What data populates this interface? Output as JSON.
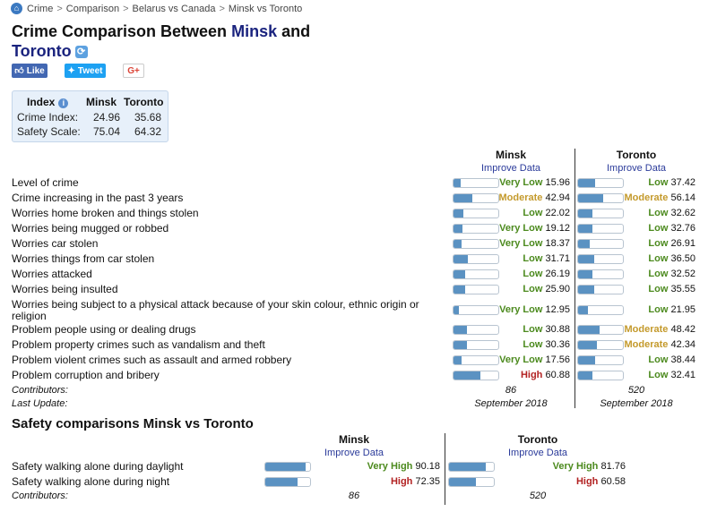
{
  "breadcrumb": {
    "items": [
      "Crime",
      "Comparison",
      "Belarus vs Canada",
      "Minsk vs Toronto"
    ],
    "separator": ">"
  },
  "title": {
    "prefix": "Crime Comparison Between",
    "city1": "Minsk",
    "joiner": "and",
    "city2": "Toronto"
  },
  "share": {
    "like": "Like",
    "tweet": "Tweet",
    "gplus": "G+"
  },
  "index_box": {
    "header": {
      "index": "Index",
      "city1": "Minsk",
      "city2": "Toronto"
    },
    "rows": [
      {
        "label": "Crime Index:",
        "city1": "24.96",
        "city2": "35.68"
      },
      {
        "label": "Safety Scale:",
        "city1": "75.04",
        "city2": "64.32"
      }
    ]
  },
  "crime_table": {
    "city1": "Minsk",
    "city2": "Toronto",
    "improve": "Improve Data",
    "rows": [
      {
        "label": "Level of crime",
        "c1": {
          "rating": "Very Low",
          "value": "15.96"
        },
        "c2": {
          "rating": "Low",
          "value": "37.42"
        }
      },
      {
        "label": "Crime increasing in the past 3 years",
        "c1": {
          "rating": "Moderate",
          "value": "42.94"
        },
        "c2": {
          "rating": "Moderate",
          "value": "56.14"
        }
      },
      {
        "label": "Worries home broken and things stolen",
        "c1": {
          "rating": "Low",
          "value": "22.02"
        },
        "c2": {
          "rating": "Low",
          "value": "32.62"
        }
      },
      {
        "label": "Worries being mugged or robbed",
        "c1": {
          "rating": "Very Low",
          "value": "19.12"
        },
        "c2": {
          "rating": "Low",
          "value": "32.76"
        }
      },
      {
        "label": "Worries car stolen",
        "c1": {
          "rating": "Very Low",
          "value": "18.37"
        },
        "c2": {
          "rating": "Low",
          "value": "26.91"
        }
      },
      {
        "label": "Worries things from car stolen",
        "c1": {
          "rating": "Low",
          "value": "31.71"
        },
        "c2": {
          "rating": "Low",
          "value": "36.50"
        }
      },
      {
        "label": "Worries attacked",
        "c1": {
          "rating": "Low",
          "value": "26.19"
        },
        "c2": {
          "rating": "Low",
          "value": "32.52"
        }
      },
      {
        "label": "Worries being insulted",
        "c1": {
          "rating": "Low",
          "value": "25.90"
        },
        "c2": {
          "rating": "Low",
          "value": "35.55"
        }
      },
      {
        "label": "Worries being subject to a physical attack because of your skin colour, ethnic origin or religion",
        "c1": {
          "rating": "Very Low",
          "value": "12.95"
        },
        "c2": {
          "rating": "Low",
          "value": "21.95"
        }
      },
      {
        "label": "Problem people using or dealing drugs",
        "c1": {
          "rating": "Low",
          "value": "30.88"
        },
        "c2": {
          "rating": "Moderate",
          "value": "48.42"
        }
      },
      {
        "label": "Problem property crimes such as vandalism and theft",
        "c1": {
          "rating": "Low",
          "value": "30.36"
        },
        "c2": {
          "rating": "Moderate",
          "value": "42.34"
        }
      },
      {
        "label": "Problem violent crimes such as assault and armed robbery",
        "c1": {
          "rating": "Very Low",
          "value": "17.56"
        },
        "c2": {
          "rating": "Low",
          "value": "38.44"
        }
      },
      {
        "label": "Problem corruption and bribery",
        "c1": {
          "rating": "High",
          "value": "60.88"
        },
        "c2": {
          "rating": "Low",
          "value": "32.41"
        }
      }
    ],
    "contributors": {
      "label": "Contributors:",
      "c1": "86",
      "c2": "520"
    },
    "last_update": {
      "label": "Last Update:",
      "c1": "September 2018",
      "c2": "September 2018"
    }
  },
  "safety": {
    "title": "Safety comparisons Minsk vs Toronto",
    "city1": "Minsk",
    "city2": "Toronto",
    "improve": "Improve Data",
    "rows": [
      {
        "label": "Safety walking alone during daylight",
        "c1": {
          "rating": "Very High",
          "value": "90.18"
        },
        "c2": {
          "rating": "Very High",
          "value": "81.76"
        }
      },
      {
        "label": "Safety walking alone during night",
        "c1": {
          "rating": "High",
          "value": "72.35"
        },
        "c2": {
          "rating": "High",
          "value": "60.58"
        }
      }
    ],
    "contributors": {
      "label": "Contributors:",
      "c1": "86",
      "c2": "520"
    }
  },
  "colors": {
    "bar_fill": "#5b92c2",
    "rating_low": "#4c8a1e",
    "rating_moderate": "#c49a2c",
    "rating_high": "#b22222",
    "title_city": "#1a237e"
  }
}
